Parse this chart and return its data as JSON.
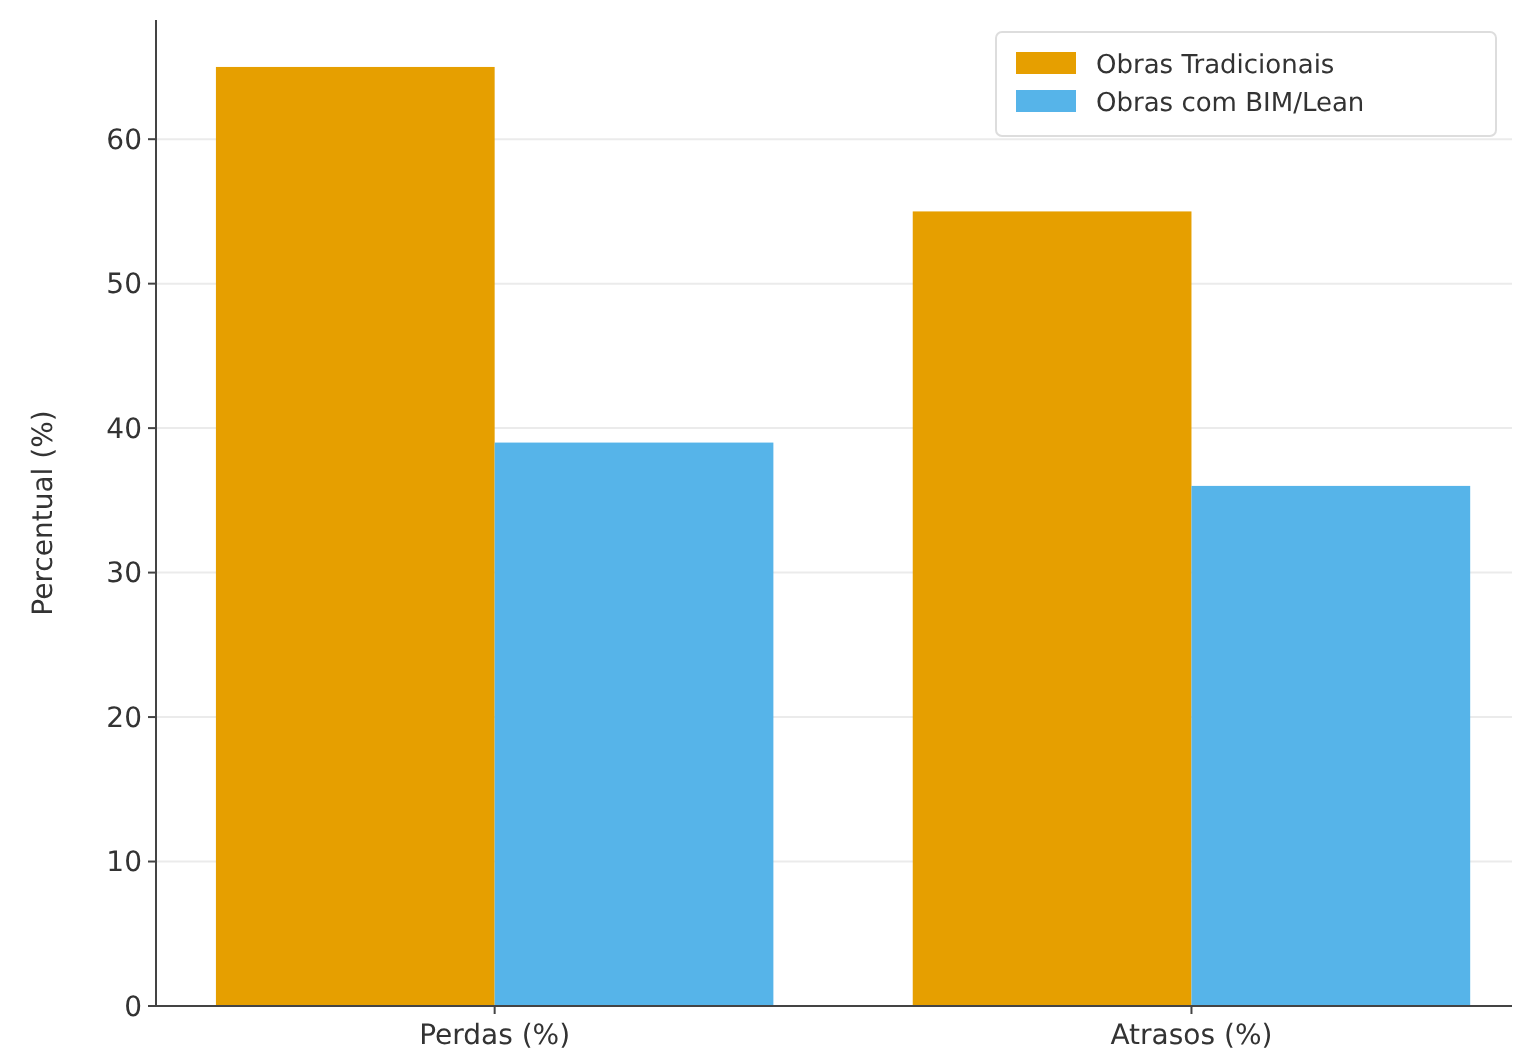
{
  "chart_data": {
    "type": "bar",
    "ylabel": "Percentual (%)",
    "categories": [
      "Perdas (%)",
      "Atrasos (%)"
    ],
    "series": [
      {
        "name": "Obras Tradicionais",
        "color": "#e69f00",
        "values": [
          65,
          55
        ]
      },
      {
        "name": "Obras com BIM/Lean",
        "color": "#56b4e9",
        "values": [
          39,
          36
        ]
      }
    ],
    "ylim": [
      0,
      68.25
    ],
    "yticks": [
      0,
      10,
      20,
      30,
      40,
      50,
      60
    ],
    "grid": "y",
    "legend": "top right"
  }
}
